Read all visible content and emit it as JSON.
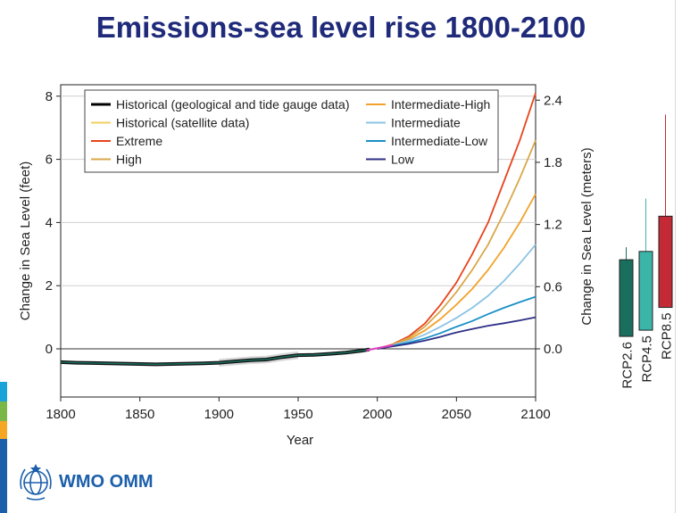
{
  "slide_title": "Emissions-sea level rise 1800-2100",
  "logo": {
    "text": "WMO OMM",
    "icon": "wmo-globe-emblem-icon"
  },
  "colors": {
    "title": "#1f2a7a",
    "left_bar": [
      "#1aa3d9",
      "#7ab648",
      "#f5a623",
      "#1b5faa"
    ]
  },
  "chart_data": {
    "type": "line",
    "xlabel": "Year",
    "ylabel_left": "Change in Sea Level (feet)",
    "ylabel_right": "Change in Sea Level (meters)",
    "xlim": [
      1800,
      2100
    ],
    "ylim": [
      -1.5,
      8.3
    ],
    "x_ticks": [
      1800,
      1850,
      1900,
      1950,
      2000,
      2050,
      2100
    ],
    "y_ticks_left": [
      0,
      2,
      4,
      6,
      8
    ],
    "y_ticks_right": [
      "0.0",
      "0.6",
      "1.2",
      "1.8",
      "2.4"
    ],
    "grid": "horizontal",
    "legend_position": "top",
    "legend": [
      {
        "label": "Historical (geological and tide gauge data)",
        "color": "#000000"
      },
      {
        "label": "Historical (satellite data)",
        "color": "#f0d060"
      },
      {
        "label": "Extreme",
        "color": "#e8431c"
      },
      {
        "label": "High",
        "color": "#d9a84a"
      },
      {
        "label": "Intermediate-High",
        "color": "#f2a22a"
      },
      {
        "label": "Intermediate",
        "color": "#8cc3e3"
      },
      {
        "label": "Intermediate-Low",
        "color": "#1a8fc6"
      },
      {
        "label": "Low",
        "color": "#2e2f86"
      }
    ],
    "historical": {
      "x": [
        1800,
        1810,
        1820,
        1830,
        1840,
        1850,
        1860,
        1870,
        1880,
        1890,
        1900,
        1910,
        1920,
        1930,
        1940,
        1950,
        1960,
        1970,
        1980,
        1990,
        1995
      ],
      "y": [
        -0.42,
        -0.44,
        -0.45,
        -0.46,
        -0.47,
        -0.48,
        -0.49,
        -0.48,
        -0.47,
        -0.46,
        -0.44,
        -0.4,
        -0.36,
        -0.34,
        -0.26,
        -0.2,
        -0.19,
        -0.16,
        -0.12,
        -0.06,
        -0.02
      ]
    },
    "uncertainty_band": {
      "x": [
        1900,
        1950
      ],
      "color": "#bbbbbb"
    },
    "satellite": {
      "x": [
        1993,
        2000,
        2010
      ],
      "y": [
        -0.05,
        0.02,
        0.12
      ],
      "color": "#e040c0"
    },
    "series": [
      {
        "name": "Extreme",
        "color": "#e8431c",
        "x": [
          2000,
          2010,
          2020,
          2030,
          2040,
          2050,
          2060,
          2070,
          2080,
          2090,
          2100
        ],
        "y": [
          0.0,
          0.15,
          0.4,
          0.8,
          1.4,
          2.1,
          3.0,
          4.0,
          5.3,
          6.6,
          8.1
        ]
      },
      {
        "name": "High",
        "color": "#d9a84a",
        "x": [
          2000,
          2010,
          2020,
          2030,
          2040,
          2050,
          2060,
          2070,
          2080,
          2090,
          2100
        ],
        "y": [
          0.0,
          0.14,
          0.35,
          0.7,
          1.2,
          1.8,
          2.5,
          3.3,
          4.3,
          5.4,
          6.6
        ]
      },
      {
        "name": "Intermediate-High",
        "color": "#f2a22a",
        "x": [
          2000,
          2010,
          2020,
          2030,
          2040,
          2050,
          2060,
          2070,
          2080,
          2090,
          2100
        ],
        "y": [
          0.0,
          0.13,
          0.3,
          0.58,
          0.95,
          1.4,
          1.9,
          2.5,
          3.2,
          4.0,
          4.9
        ]
      },
      {
        "name": "Intermediate",
        "color": "#8cc3e3",
        "x": [
          2000,
          2010,
          2020,
          2030,
          2040,
          2050,
          2060,
          2070,
          2080,
          2090,
          2100
        ],
        "y": [
          0.0,
          0.12,
          0.26,
          0.45,
          0.7,
          0.98,
          1.3,
          1.68,
          2.15,
          2.7,
          3.3
        ]
      },
      {
        "name": "Intermediate-Low",
        "color": "#1a8fc6",
        "x": [
          2000,
          2010,
          2020,
          2030,
          2040,
          2050,
          2060,
          2070,
          2080,
          2090,
          2100
        ],
        "y": [
          0.0,
          0.1,
          0.2,
          0.33,
          0.5,
          0.7,
          0.88,
          1.1,
          1.3,
          1.48,
          1.65
        ]
      },
      {
        "name": "Low",
        "color": "#2e2f86",
        "x": [
          2000,
          2010,
          2020,
          2030,
          2040,
          2050,
          2060,
          2070,
          2080,
          2090,
          2100
        ],
        "y": [
          0.0,
          0.08,
          0.16,
          0.26,
          0.38,
          0.52,
          0.63,
          0.73,
          0.81,
          0.9,
          1.0
        ]
      }
    ],
    "rcp_boxes": [
      {
        "label": "RCP2.6",
        "color": "#1a6e5e",
        "whisker_top_m": 0.98,
        "box_top_m": 0.86,
        "box_bottom_m": 0.12,
        "whisker_bottom_m": 0.12
      },
      {
        "label": "RCP4.5",
        "color": "#3ab5a8",
        "whisker_top_m": 1.45,
        "box_top_m": 0.94,
        "box_bottom_m": 0.18,
        "whisker_bottom_m": 0.18
      },
      {
        "label": "RCP8.5",
        "color": "#c42a35",
        "whisker_top_m": 2.26,
        "box_top_m": 1.28,
        "box_bottom_m": 0.4,
        "whisker_bottom_m": 0.4
      }
    ]
  }
}
